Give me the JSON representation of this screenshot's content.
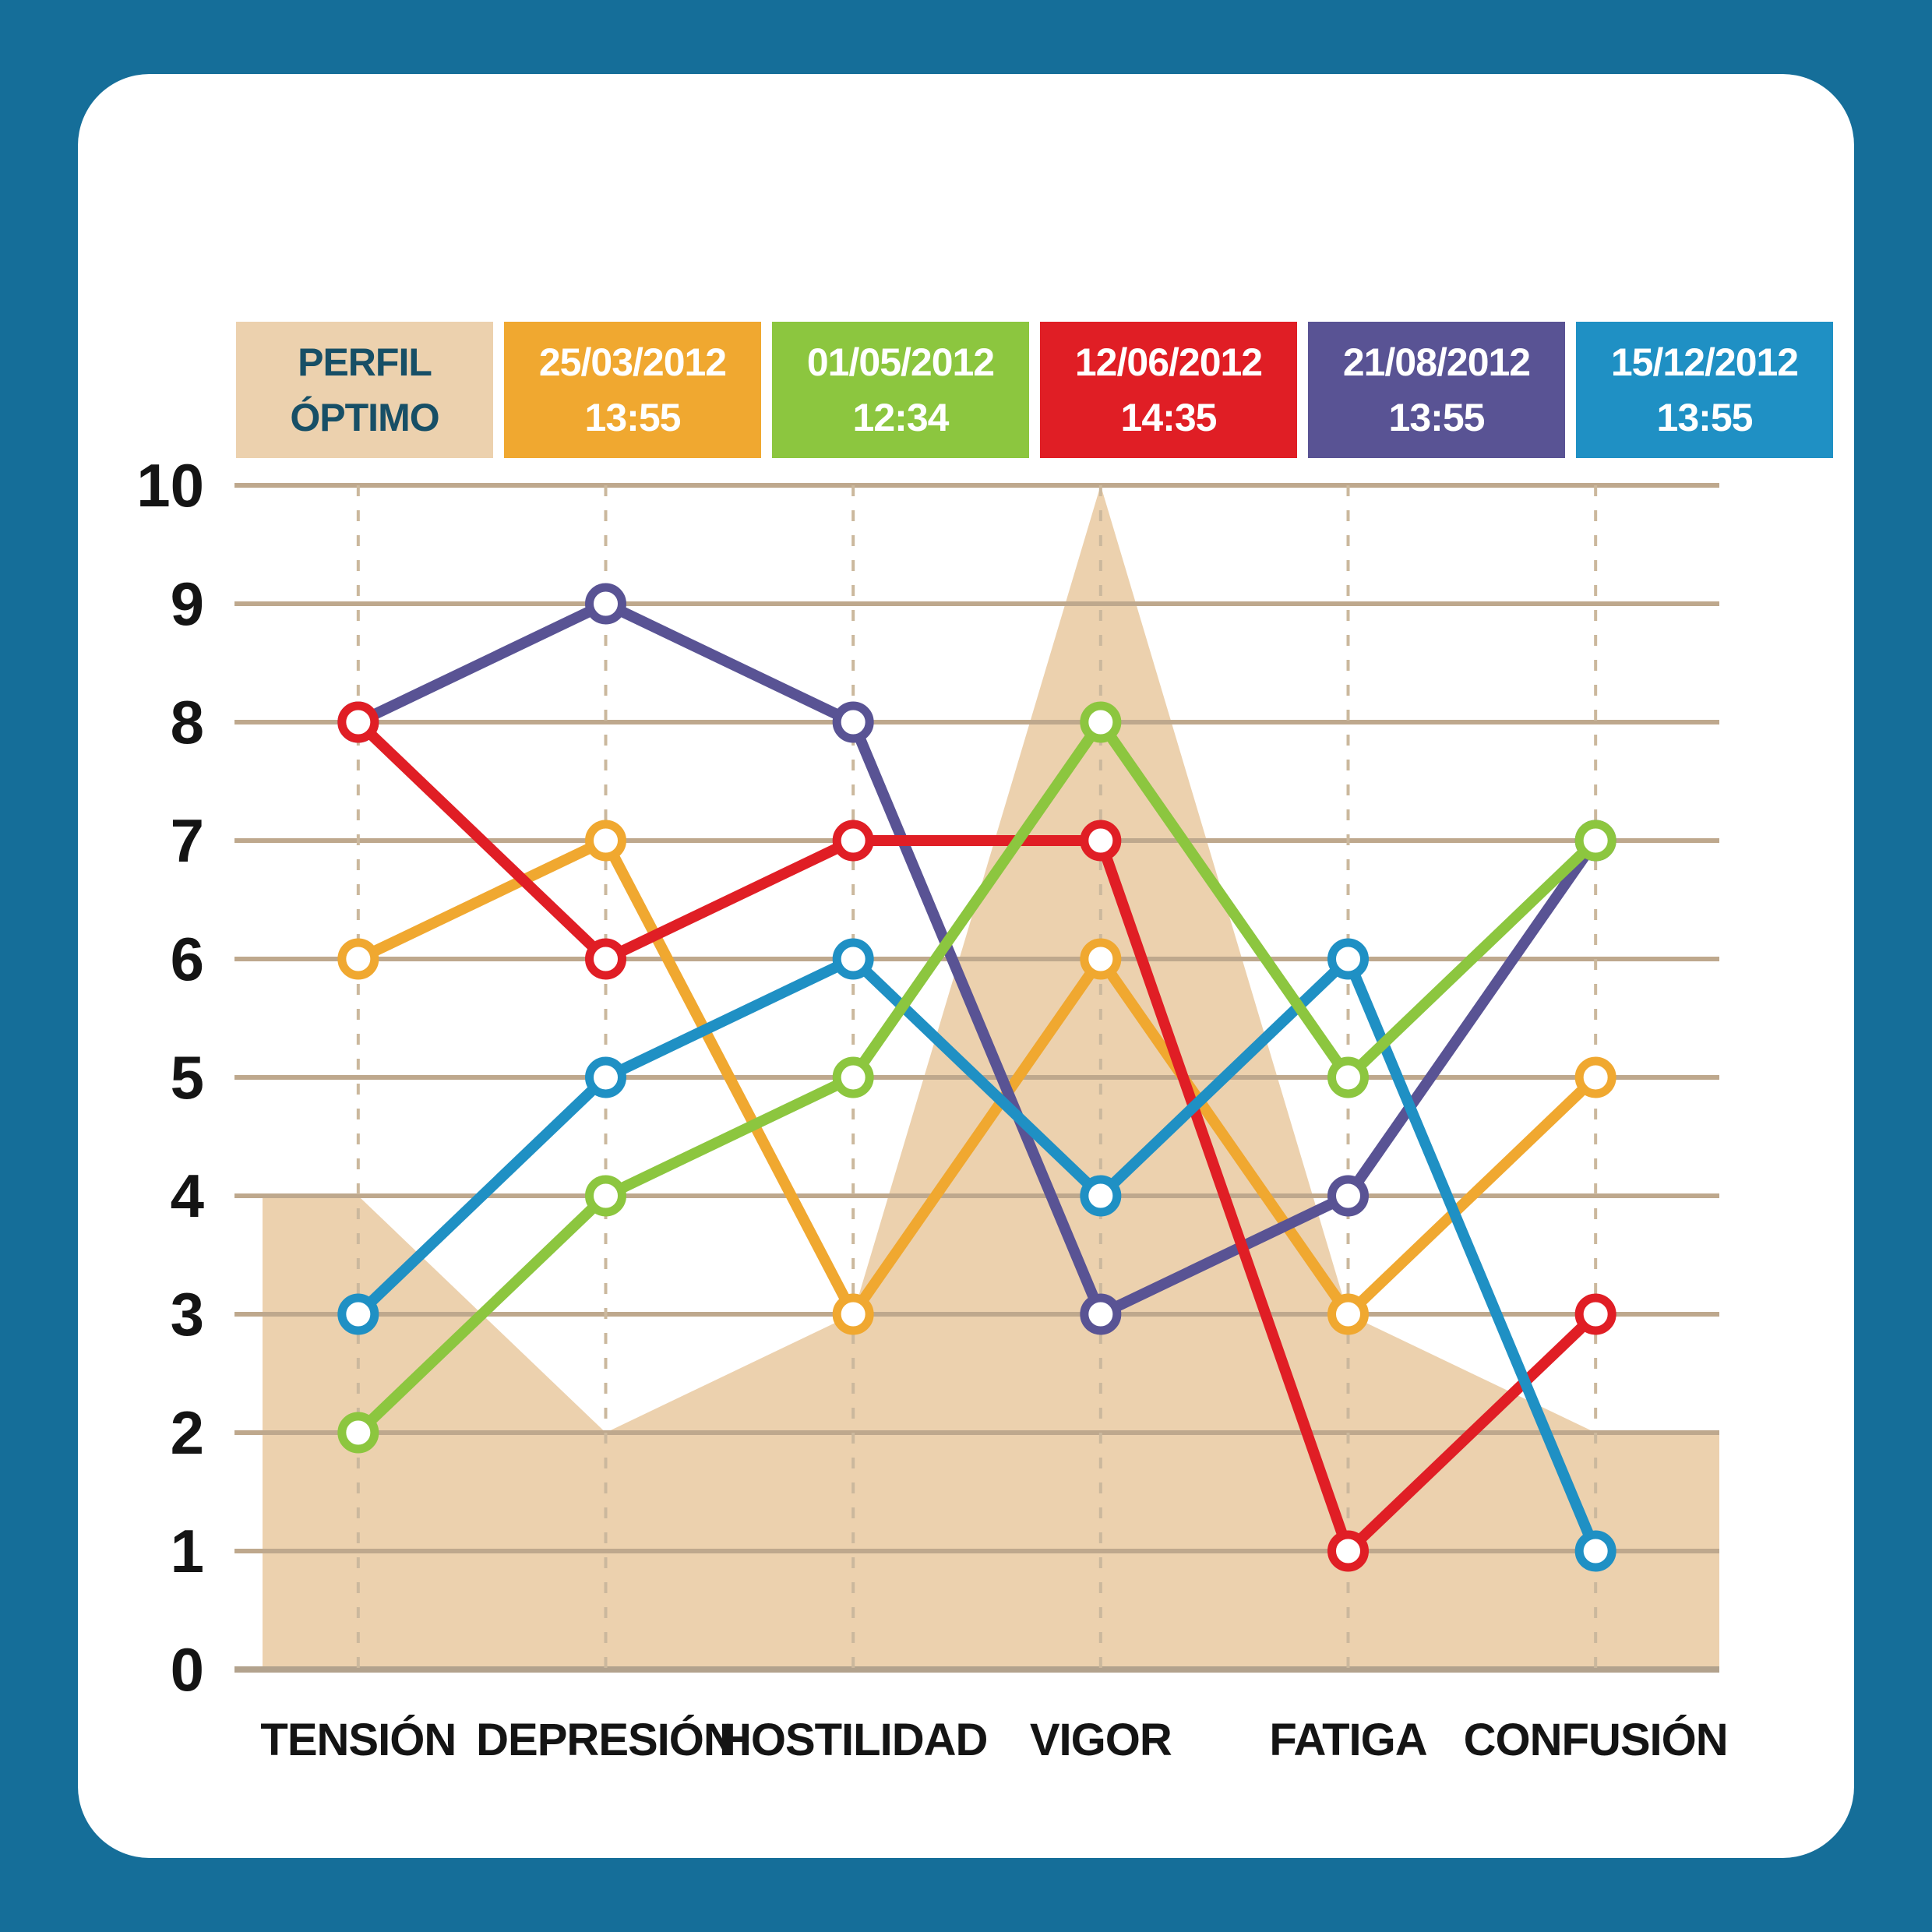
{
  "page": {
    "background_color": "#156E99",
    "card_color": "#FFFFFF"
  },
  "legend": {
    "items": [
      {
        "label_line1": "PERFIL",
        "label_line2": "ÓPTIMO",
        "bg": "#ECD1AE",
        "text_color": "#174F66",
        "role": "optimal-profile"
      },
      {
        "label_line1": "25/03/2012",
        "label_line2": "13:55",
        "bg": "#F0A830",
        "text_color": "#FFFFFF",
        "role": "session-date"
      },
      {
        "label_line1": "01/05/2012",
        "label_line2": "12:34",
        "bg": "#8CC63F",
        "text_color": "#FFFFFF",
        "role": "session-date"
      },
      {
        "label_line1": "12/06/2012",
        "label_line2": "14:35",
        "bg": "#E01E25",
        "text_color": "#FFFFFF",
        "role": "session-date"
      },
      {
        "label_line1": "21/08/2012",
        "label_line2": "13:55",
        "bg": "#595394",
        "text_color": "#FFFFFF",
        "role": "session-date"
      },
      {
        "label_line1": "15/12/2012",
        "label_line2": "13:55",
        "bg": "#1F90C4",
        "text_color": "#FFFFFF",
        "role": "session-date"
      }
    ]
  },
  "chart_data": {
    "type": "line",
    "categories": [
      "TENSIÓN",
      "DEPRESIÓN",
      "HOSTILIDAD",
      "VIGOR",
      "FATIGA",
      "CONFUSIÓN"
    ],
    "y_ticks": [
      0,
      1,
      2,
      3,
      4,
      5,
      6,
      7,
      8,
      9,
      10
    ],
    "ylim": [
      0,
      10
    ],
    "grid": "horizontal solid lines at every integer; vertical dashed guide at each category",
    "legend_position": "top",
    "marker": "open-circle",
    "gridline_color": "#BEA88D",
    "baseline_color": "#B2A28D",
    "dashed_guide_color": "#CBB89D",
    "tick_label_color": "#141414",
    "optimal_area": {
      "name": "PERFIL ÓPTIMO",
      "color": "#ECD1AE",
      "values": [
        4,
        2,
        3,
        10,
        3,
        2
      ],
      "extends_to_plot_edges": true,
      "left_edge_value": 4,
      "right_edge_value": 2
    },
    "series": [
      {
        "name": "25/03/2012 13:55",
        "color": "#F0A830",
        "values": [
          6,
          7,
          3,
          6,
          3,
          5
        ],
        "z": 1
      },
      {
        "name": "21/08/2012 13:55",
        "color": "#595394",
        "values": [
          8,
          9,
          8,
          3,
          4,
          7
        ],
        "z": 2
      },
      {
        "name": "12/06/2012 14:35",
        "color": "#E01E25",
        "values": [
          8,
          6,
          7,
          7,
          1,
          3
        ],
        "z": 3
      },
      {
        "name": "15/12/2012 13:55",
        "color": "#1F90C4",
        "values": [
          3,
          5,
          6,
          4,
          6,
          1
        ],
        "z": 4
      },
      {
        "name": "01/05/2012 12:34",
        "color": "#8CC63F",
        "values": [
          2,
          4,
          5,
          8,
          5,
          7
        ],
        "z": 5
      }
    ]
  }
}
